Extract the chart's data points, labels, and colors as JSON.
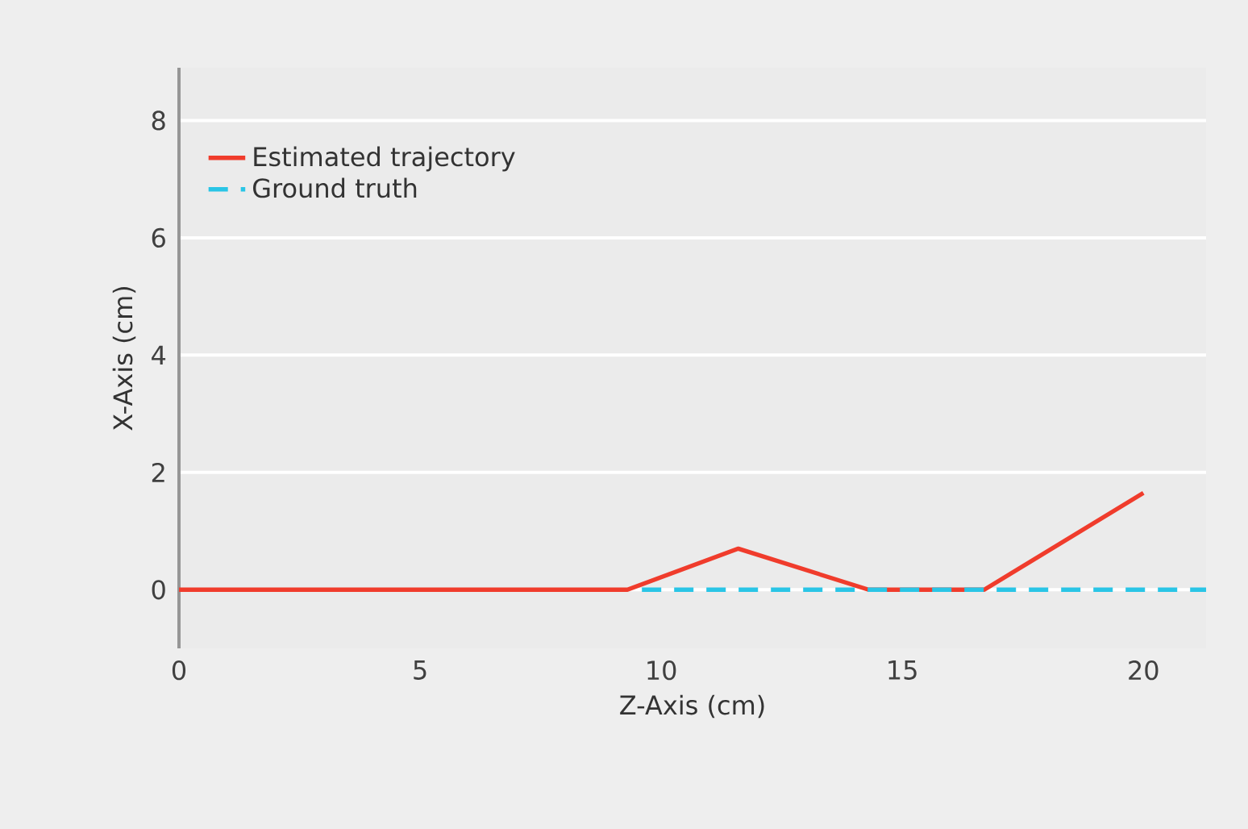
{
  "chart_data": {
    "type": "line",
    "xlabel": "Z-Axis (cm)",
    "ylabel": "X-Axis (cm)",
    "xlim": [
      0,
      21.3
    ],
    "ylim": [
      -1,
      8.9
    ],
    "xticks": [
      0,
      5,
      10,
      15,
      20
    ],
    "yticks": [
      0,
      2,
      4,
      6,
      8
    ],
    "grid": "y",
    "legend": "top left",
    "marker": "none",
    "series": [
      {
        "name": "Estimated trajectory",
        "color": "#f03c2c",
        "line_style": "solid",
        "x": [
          0,
          9.3,
          11.6,
          14.3,
          16.7,
          20.0
        ],
        "values": [
          0,
          0,
          0.7,
          0,
          0,
          1.65
        ]
      },
      {
        "name": "Ground truth",
        "color": "#29c5e6",
        "line_style": "dashed",
        "x": [
          9.6,
          21.3
        ],
        "values": [
          0,
          0
        ]
      }
    ]
  }
}
